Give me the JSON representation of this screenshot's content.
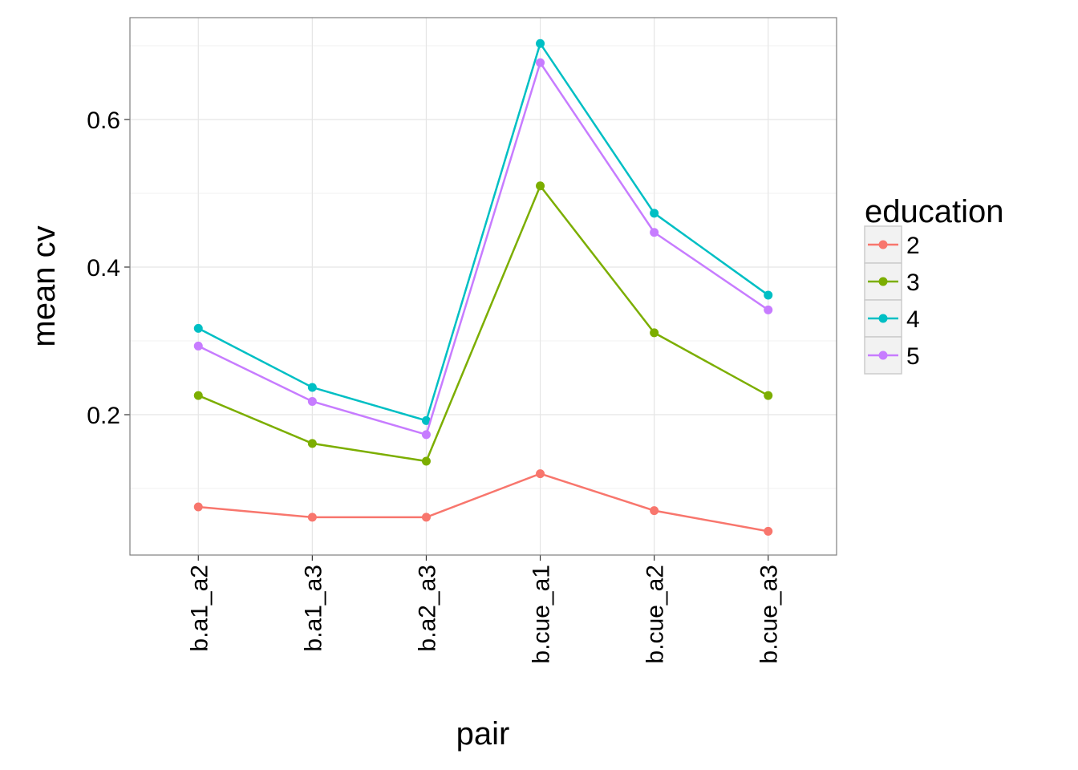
{
  "chart_data": {
    "type": "line",
    "x_label": "pair",
    "y_label": "mean cv",
    "categories": [
      "b.a1_a2",
      "b.a1_a3",
      "b.a2_a3",
      "b.cue_a1",
      "b.cue_a2",
      "b.cue_a3"
    ],
    "series": [
      {
        "name": "2",
        "color": "#F8766D",
        "values": [
          0.075,
          0.061,
          0.061,
          0.12,
          0.07,
          0.042
        ]
      },
      {
        "name": "3",
        "color": "#7CAE00",
        "values": [
          0.226,
          0.161,
          0.137,
          0.51,
          0.311,
          0.226
        ]
      },
      {
        "name": "4",
        "color": "#00BFC4",
        "values": [
          0.317,
          0.237,
          0.192,
          0.703,
          0.473,
          0.362
        ]
      },
      {
        "name": "5",
        "color": "#C77CFF",
        "values": [
          0.293,
          0.218,
          0.173,
          0.677,
          0.447,
          0.342
        ]
      }
    ],
    "legend_title": "education",
    "ylim": [
      0.0098,
      0.738
    ],
    "yticks": [
      {
        "value": 0.2,
        "label": "0.2"
      },
      {
        "value": 0.4,
        "label": "0.4"
      },
      {
        "value": 0.6,
        "label": "0.6"
      }
    ],
    "yminor": [
      0.1,
      0.3,
      0.5,
      0.7
    ],
    "grid": true,
    "legend": "right"
  }
}
